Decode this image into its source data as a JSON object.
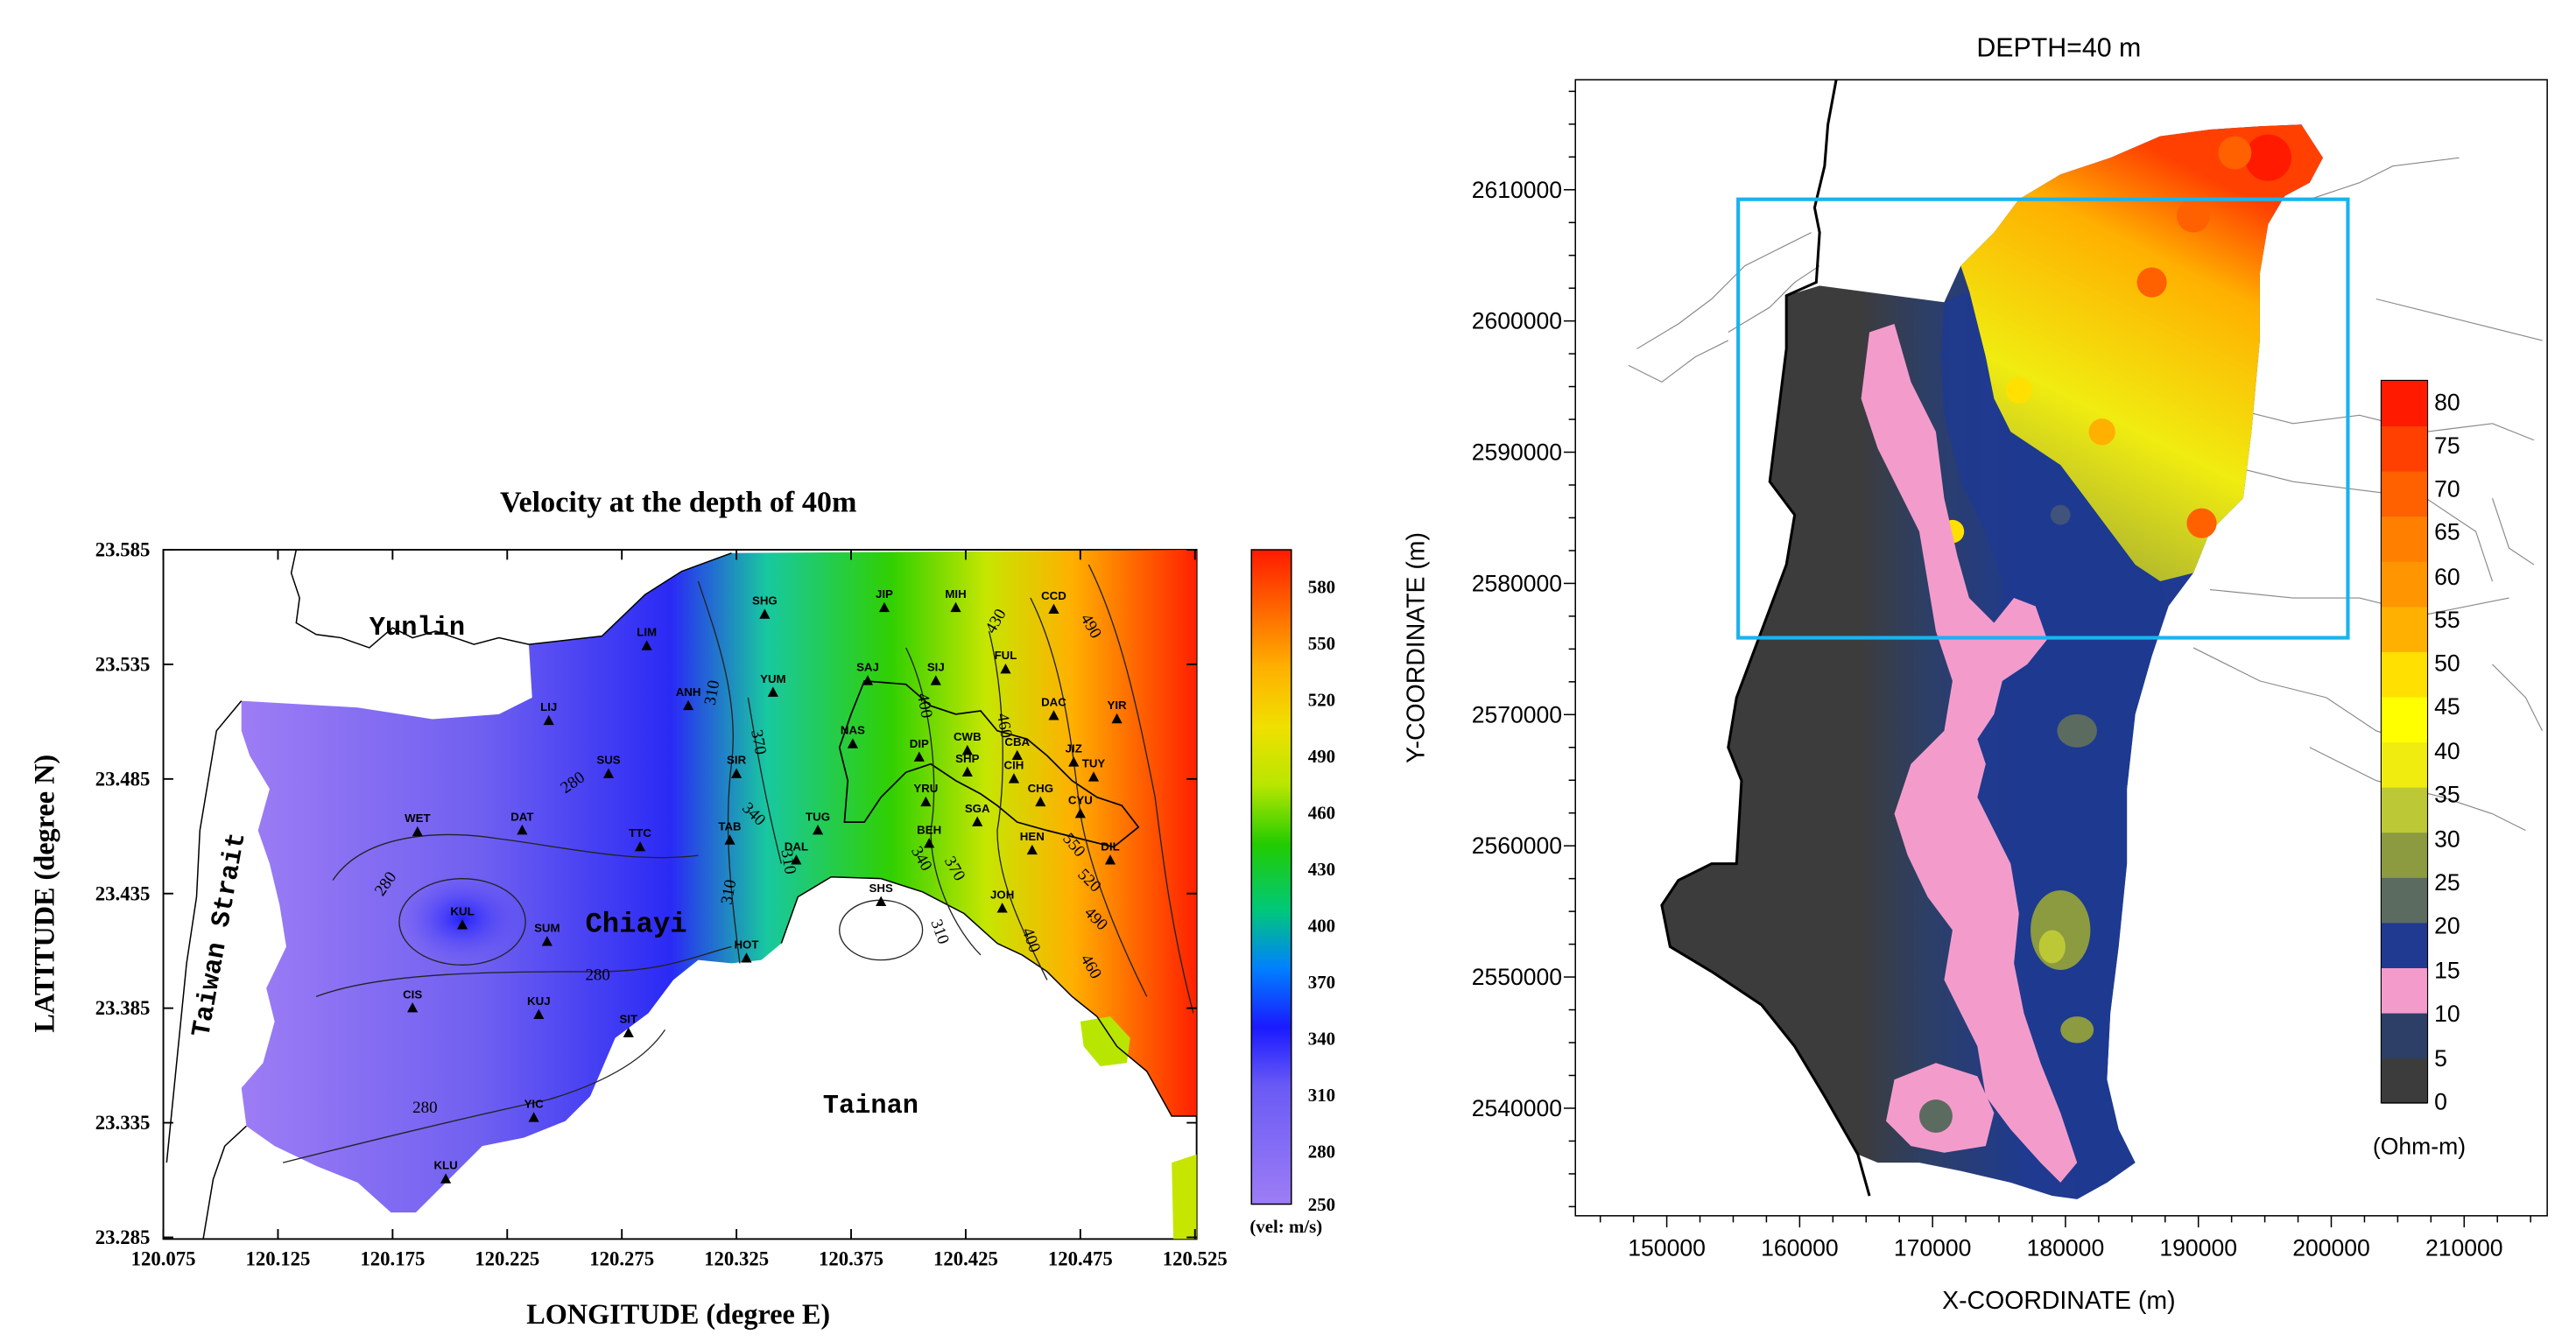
{
  "left_map": {
    "title": "Velocity at the depth of 40m",
    "x_axis_label": "LONGITUDE (degree E)",
    "y_axis_label": "LATITUDE (degree N)",
    "x_ticks": [
      "120.075",
      "120.125",
      "120.175",
      "120.225",
      "120.275",
      "120.325",
      "120.375",
      "120.425",
      "120.475",
      "120.525"
    ],
    "y_ticks": [
      "23.585",
      "23.535",
      "23.485",
      "23.435",
      "23.385",
      "23.335",
      "23.285"
    ],
    "region_labels": [
      "Yunlin",
      "Chiayi",
      "Tainan",
      "Taiwan Strait"
    ],
    "stations": [
      "SHG",
      "JIP",
      "MIH",
      "CCD",
      "LIM",
      "YUM",
      "SAJ",
      "SIJ",
      "FUL",
      "ANH",
      "DAC",
      "YIR",
      "LIJ",
      "NAS",
      "CWB",
      "CBA",
      "JIZ",
      "SUS",
      "SIR",
      "DIP",
      "SHP",
      "CIH",
      "TUY",
      "YRU",
      "CHG",
      "CYU",
      "WET",
      "DAT",
      "TTC",
      "TAB",
      "TUG",
      "BEH",
      "SGA",
      "HEN",
      "DIL",
      "DAL",
      "KUL",
      "SUM",
      "SHS",
      "JOH",
      "HOT",
      "CIS",
      "KUJ",
      "SIT",
      "YIC",
      "KLU"
    ],
    "contour_labels": [
      "280",
      "280",
      "280",
      "280",
      "310",
      "310",
      "370",
      "340",
      "310",
      "340",
      "370",
      "400",
      "430",
      "460",
      "490",
      "520",
      "550",
      "490",
      "460",
      "400",
      "310"
    ],
    "colorbar_ticks": [
      "580",
      "550",
      "520",
      "490",
      "460",
      "430",
      "400",
      "370",
      "340",
      "310",
      "280",
      "250"
    ],
    "colorbar_unit": "(vel: m/s)",
    "colorbar_colors": [
      "#ff1a00",
      "#ff6600",
      "#ffb000",
      "#f0e000",
      "#b8e600",
      "#22cc00",
      "#00c878",
      "#1010ff",
      "#5050f0",
      "#9d7df5"
    ]
  },
  "right_map": {
    "title": "DEPTH=40 m",
    "x_axis_label": "X-COORDINATE (m)",
    "y_axis_label": "Y-COORDINATE (m)",
    "x_ticks": [
      "150000",
      "160000",
      "170000",
      "180000",
      "190000",
      "200000",
      "210000"
    ],
    "y_ticks": [
      "2610000",
      "2600000",
      "2590000",
      "2580000",
      "2570000",
      "2560000",
      "2550000",
      "2540000"
    ],
    "colorbar_ticks": [
      "80",
      "75",
      "70",
      "65",
      "60",
      "55",
      "50",
      "45",
      "40",
      "35",
      "30",
      "25",
      "20",
      "15",
      "10",
      "5",
      "0"
    ],
    "colorbar_unit": "(Ohm-m)",
    "colorbar_colors": [
      "#3c3c3c",
      "#2d3f66",
      "#f39ccb",
      "#1f3a90",
      "#5b6b5f",
      "#8c9a40",
      "#bdc836",
      "#f0ec10",
      "#ffff00",
      "#ffe000",
      "#ffb000",
      "#ff9500",
      "#ff8000",
      "#ff6000",
      "#ff4000",
      "#ff1a00"
    ]
  }
}
